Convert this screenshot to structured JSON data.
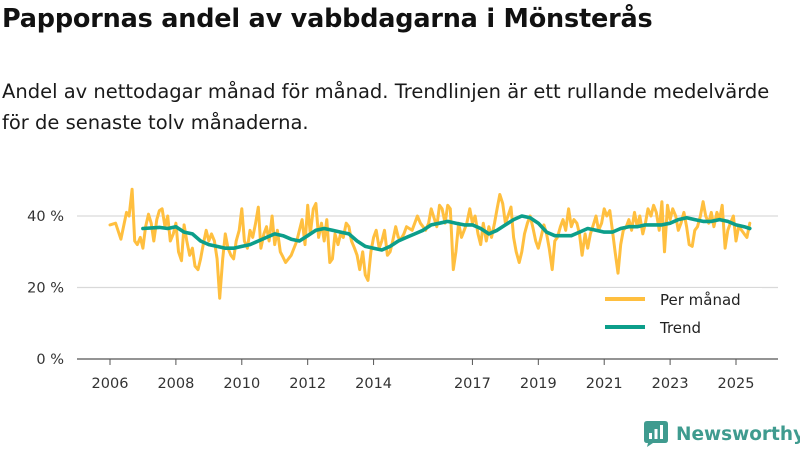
{
  "chart_data": {
    "type": "line",
    "title": "Pappornas andel av vabbdagarna i Mönsterås",
    "subtitle": "Andel av nettodagar månad för månad. Trendlinjen är ett rullande medelvärde för de senaste tolv månaderna.",
    "xlabel": "",
    "ylabel": "",
    "ylim": [
      0,
      55
    ],
    "xlim": [
      2005.7,
      2025.75
    ],
    "y_ticks": [
      0,
      20,
      40
    ],
    "y_tick_labels": [
      "0 %",
      "20 %",
      "40 %"
    ],
    "x_ticks": [
      2006,
      2008,
      2010,
      2012,
      2014,
      2017,
      2019,
      2021,
      2023,
      2025
    ],
    "x_tick_labels": [
      "2006",
      "2008",
      "2010",
      "2012",
      "2014",
      "2017",
      "2019",
      "2021",
      "2023",
      "2025"
    ],
    "grid": true,
    "legend_position": "bottom-right",
    "series": [
      {
        "name": "Per månad",
        "color": "#ffbf3f",
        "points": [
          [
            2006.0,
            37.5
          ],
          [
            2006.17,
            38
          ],
          [
            2006.33,
            33.5
          ],
          [
            2006.5,
            41
          ],
          [
            2006.58,
            40
          ],
          [
            2006.67,
            47.5
          ],
          [
            2006.75,
            33
          ],
          [
            2006.83,
            32
          ],
          [
            2006.92,
            34
          ],
          [
            2007.0,
            31
          ],
          [
            2007.08,
            37
          ],
          [
            2007.17,
            40.5
          ],
          [
            2007.25,
            38
          ],
          [
            2007.33,
            33
          ],
          [
            2007.42,
            39
          ],
          [
            2007.5,
            41.5
          ],
          [
            2007.58,
            42
          ],
          [
            2007.67,
            37
          ],
          [
            2007.75,
            40
          ],
          [
            2007.83,
            33
          ],
          [
            2007.92,
            35
          ],
          [
            2008.0,
            38
          ],
          [
            2008.08,
            30
          ],
          [
            2008.17,
            27.5
          ],
          [
            2008.25,
            37.5
          ],
          [
            2008.33,
            33
          ],
          [
            2008.42,
            29
          ],
          [
            2008.5,
            31
          ],
          [
            2008.58,
            26
          ],
          [
            2008.67,
            25
          ],
          [
            2008.75,
            28
          ],
          [
            2008.83,
            32
          ],
          [
            2008.92,
            36
          ],
          [
            2009.0,
            33
          ],
          [
            2009.08,
            35
          ],
          [
            2009.17,
            33
          ],
          [
            2009.25,
            28
          ],
          [
            2009.33,
            17
          ],
          [
            2009.42,
            28
          ],
          [
            2009.5,
            35
          ],
          [
            2009.58,
            31
          ],
          [
            2009.67,
            29
          ],
          [
            2009.75,
            28
          ],
          [
            2009.83,
            33
          ],
          [
            2009.92,
            36
          ],
          [
            2010.0,
            42
          ],
          [
            2010.08,
            33
          ],
          [
            2010.17,
            31
          ],
          [
            2010.25,
            36
          ],
          [
            2010.33,
            34
          ],
          [
            2010.42,
            38
          ],
          [
            2010.5,
            42.5
          ],
          [
            2010.58,
            31
          ],
          [
            2010.67,
            35
          ],
          [
            2010.75,
            37
          ],
          [
            2010.83,
            33
          ],
          [
            2010.92,
            40
          ],
          [
            2011.0,
            32
          ],
          [
            2011.08,
            36
          ],
          [
            2011.17,
            30
          ],
          [
            2011.25,
            28.5
          ],
          [
            2011.33,
            27
          ],
          [
            2011.5,
            29
          ],
          [
            2011.67,
            33
          ],
          [
            2011.75,
            36
          ],
          [
            2011.83,
            39
          ],
          [
            2011.92,
            32
          ],
          [
            2012.0,
            43
          ],
          [
            2012.08,
            35
          ],
          [
            2012.17,
            42
          ],
          [
            2012.25,
            43.5
          ],
          [
            2012.33,
            34
          ],
          [
            2012.42,
            38
          ],
          [
            2012.5,
            33
          ],
          [
            2012.58,
            39
          ],
          [
            2012.67,
            27
          ],
          [
            2012.75,
            28
          ],
          [
            2012.83,
            35
          ],
          [
            2012.92,
            32
          ],
          [
            2013.0,
            35
          ],
          [
            2013.08,
            34
          ],
          [
            2013.17,
            38
          ],
          [
            2013.25,
            37
          ],
          [
            2013.33,
            33
          ],
          [
            2013.42,
            31
          ],
          [
            2013.5,
            29
          ],
          [
            2013.58,
            25
          ],
          [
            2013.67,
            30
          ],
          [
            2013.75,
            23.5
          ],
          [
            2013.83,
            22
          ],
          [
            2013.92,
            30
          ],
          [
            2014.0,
            34
          ],
          [
            2014.08,
            36
          ],
          [
            2014.17,
            31
          ],
          [
            2014.25,
            33
          ],
          [
            2014.33,
            36
          ],
          [
            2014.42,
            29
          ],
          [
            2014.5,
            30
          ],
          [
            2014.58,
            33
          ],
          [
            2014.67,
            37
          ],
          [
            2014.75,
            34
          ],
          [
            2014.83,
            33.5
          ],
          [
            2014.92,
            35
          ],
          [
            2015.0,
            37
          ],
          [
            2015.17,
            36
          ],
          [
            2015.33,
            40
          ],
          [
            2015.42,
            38
          ],
          [
            2015.5,
            37
          ],
          [
            2015.58,
            36
          ],
          [
            2015.67,
            38
          ],
          [
            2015.75,
            42
          ],
          [
            2015.92,
            37
          ],
          [
            2016.0,
            43
          ],
          [
            2016.08,
            42
          ],
          [
            2016.17,
            38
          ],
          [
            2016.25,
            43
          ],
          [
            2016.33,
            42
          ],
          [
            2016.42,
            25
          ],
          [
            2016.5,
            30
          ],
          [
            2016.58,
            38
          ],
          [
            2016.67,
            34
          ],
          [
            2016.75,
            36
          ],
          [
            2016.83,
            38
          ],
          [
            2016.92,
            42
          ],
          [
            2017.0,
            38
          ],
          [
            2017.08,
            40
          ],
          [
            2017.17,
            35
          ],
          [
            2017.25,
            32
          ],
          [
            2017.33,
            38
          ],
          [
            2017.42,
            33
          ],
          [
            2017.5,
            37
          ],
          [
            2017.58,
            34
          ],
          [
            2017.67,
            38
          ],
          [
            2017.75,
            42
          ],
          [
            2017.83,
            46
          ],
          [
            2017.92,
            43.5
          ],
          [
            2018.0,
            38
          ],
          [
            2018.08,
            40
          ],
          [
            2018.17,
            42.5
          ],
          [
            2018.25,
            34
          ],
          [
            2018.33,
            30
          ],
          [
            2018.42,
            27
          ],
          [
            2018.5,
            30
          ],
          [
            2018.58,
            35
          ],
          [
            2018.67,
            38
          ],
          [
            2018.75,
            40
          ],
          [
            2018.83,
            37
          ],
          [
            2018.92,
            33
          ],
          [
            2019.0,
            31
          ],
          [
            2019.08,
            34
          ],
          [
            2019.17,
            37.5
          ],
          [
            2019.25,
            35
          ],
          [
            2019.33,
            31
          ],
          [
            2019.42,
            25
          ],
          [
            2019.5,
            33
          ],
          [
            2019.58,
            34
          ],
          [
            2019.67,
            37
          ],
          [
            2019.75,
            39
          ],
          [
            2019.83,
            36
          ],
          [
            2019.92,
            42
          ],
          [
            2020.0,
            37
          ],
          [
            2020.08,
            39
          ],
          [
            2020.17,
            38
          ],
          [
            2020.25,
            35
          ],
          [
            2020.33,
            29
          ],
          [
            2020.42,
            35
          ],
          [
            2020.5,
            31
          ],
          [
            2020.58,
            35
          ],
          [
            2020.67,
            37.5
          ],
          [
            2020.75,
            40
          ],
          [
            2020.83,
            36
          ],
          [
            2020.92,
            38
          ],
          [
            2021.0,
            42
          ],
          [
            2021.08,
            40
          ],
          [
            2021.17,
            41.5
          ],
          [
            2021.25,
            36
          ],
          [
            2021.33,
            30
          ],
          [
            2021.42,
            24
          ],
          [
            2021.5,
            32
          ],
          [
            2021.58,
            36
          ],
          [
            2021.67,
            37
          ],
          [
            2021.75,
            39
          ],
          [
            2021.83,
            36
          ],
          [
            2021.92,
            41
          ],
          [
            2022.0,
            37
          ],
          [
            2022.08,
            40
          ],
          [
            2022.17,
            35
          ],
          [
            2022.25,
            38
          ],
          [
            2022.33,
            42
          ],
          [
            2022.42,
            40
          ],
          [
            2022.5,
            43
          ],
          [
            2022.58,
            41
          ],
          [
            2022.67,
            36
          ],
          [
            2022.75,
            44
          ],
          [
            2022.83,
            30
          ],
          [
            2022.92,
            43
          ],
          [
            2023.0,
            39
          ],
          [
            2023.08,
            42
          ],
          [
            2023.17,
            40
          ],
          [
            2023.25,
            36
          ],
          [
            2023.33,
            38
          ],
          [
            2023.42,
            41
          ],
          [
            2023.5,
            37
          ],
          [
            2023.58,
            32
          ],
          [
            2023.67,
            31.5
          ],
          [
            2023.75,
            36
          ],
          [
            2023.83,
            37
          ],
          [
            2023.92,
            40
          ],
          [
            2024.0,
            44
          ],
          [
            2024.08,
            40
          ],
          [
            2024.17,
            38
          ],
          [
            2024.25,
            41
          ],
          [
            2024.33,
            37
          ],
          [
            2024.42,
            41
          ],
          [
            2024.5,
            39
          ],
          [
            2024.58,
            43
          ],
          [
            2024.67,
            31
          ],
          [
            2024.75,
            36
          ],
          [
            2024.83,
            38
          ],
          [
            2024.92,
            40
          ],
          [
            2025.0,
            33
          ],
          [
            2025.08,
            37
          ],
          [
            2025.17,
            36
          ],
          [
            2025.25,
            35
          ],
          [
            2025.33,
            34
          ],
          [
            2025.42,
            38
          ]
        ]
      },
      {
        "name": "Trend",
        "color": "#0c9e8a",
        "points": [
          [
            2007.0,
            36.5
          ],
          [
            2007.5,
            36.8
          ],
          [
            2007.75,
            36.5
          ],
          [
            2008.0,
            37
          ],
          [
            2008.25,
            35.5
          ],
          [
            2008.5,
            35
          ],
          [
            2008.75,
            33
          ],
          [
            2009.0,
            32
          ],
          [
            2009.25,
            31.5
          ],
          [
            2009.5,
            31
          ],
          [
            2009.75,
            31
          ],
          [
            2010.0,
            31.5
          ],
          [
            2010.25,
            32
          ],
          [
            2010.5,
            33
          ],
          [
            2010.75,
            34
          ],
          [
            2011.0,
            35
          ],
          [
            2011.25,
            34.5
          ],
          [
            2011.5,
            33.5
          ],
          [
            2011.75,
            33
          ],
          [
            2012.0,
            34.5
          ],
          [
            2012.25,
            36
          ],
          [
            2012.5,
            36.5
          ],
          [
            2012.75,
            36
          ],
          [
            2013.0,
            35.5
          ],
          [
            2013.25,
            35
          ],
          [
            2013.5,
            33
          ],
          [
            2013.75,
            31.5
          ],
          [
            2014.0,
            31
          ],
          [
            2014.25,
            30.5
          ],
          [
            2014.5,
            31.5
          ],
          [
            2014.75,
            33
          ],
          [
            2015.0,
            34
          ],
          [
            2015.25,
            35
          ],
          [
            2015.5,
            36
          ],
          [
            2015.75,
            37.5
          ],
          [
            2016.0,
            38
          ],
          [
            2016.25,
            38.5
          ],
          [
            2016.5,
            38
          ],
          [
            2016.75,
            37.5
          ],
          [
            2017.0,
            37.5
          ],
          [
            2017.25,
            36.5
          ],
          [
            2017.5,
            35
          ],
          [
            2017.75,
            36
          ],
          [
            2018.0,
            37.5
          ],
          [
            2018.25,
            39
          ],
          [
            2018.5,
            40
          ],
          [
            2018.75,
            39.5
          ],
          [
            2019.0,
            38
          ],
          [
            2019.25,
            35.5
          ],
          [
            2019.5,
            34.5
          ],
          [
            2019.75,
            34.5
          ],
          [
            2020.0,
            34.5
          ],
          [
            2020.25,
            35.5
          ],
          [
            2020.5,
            36.5
          ],
          [
            2020.75,
            36
          ],
          [
            2021.0,
            35.5
          ],
          [
            2021.25,
            35.5
          ],
          [
            2021.5,
            36.5
          ],
          [
            2021.75,
            37
          ],
          [
            2022.0,
            37
          ],
          [
            2022.25,
            37.5
          ],
          [
            2022.5,
            37.5
          ],
          [
            2022.75,
            37.5
          ],
          [
            2023.0,
            38
          ],
          [
            2023.25,
            39
          ],
          [
            2023.5,
            39.5
          ],
          [
            2023.75,
            39
          ],
          [
            2024.0,
            38.5
          ],
          [
            2024.25,
            38.5
          ],
          [
            2024.5,
            39
          ],
          [
            2024.75,
            38.5
          ],
          [
            2025.0,
            37.5
          ],
          [
            2025.25,
            37
          ],
          [
            2025.42,
            36.5
          ]
        ]
      }
    ]
  },
  "brand": {
    "name": "Newsworthy",
    "color": "#3f9b8f"
  }
}
